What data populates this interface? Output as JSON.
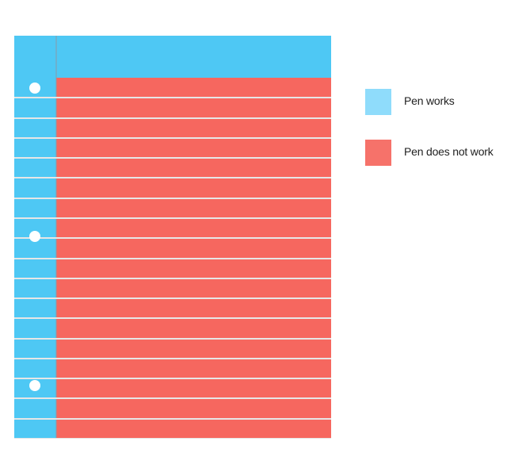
{
  "chart_data": {
    "type": "pie",
    "title": "",
    "series": [
      {
        "name": "Pen works",
        "value": 10.5,
        "color": "#4ec8f4"
      },
      {
        "name": "Pen does not work",
        "value": 89.5,
        "color": "#f6675f"
      }
    ],
    "legend": {
      "position": "right",
      "items": [
        {
          "label": "Pen works",
          "color": "#8fdcfb"
        },
        {
          "label": "Pen does not work",
          "color": "#f6726a"
        }
      ]
    },
    "grid": false
  },
  "paper": {
    "margin_color": "#4ec8f4",
    "rule_color": "#e6e6e6",
    "rule_count": 18,
    "hole_color": "#ffffff",
    "hole_count": 3
  }
}
